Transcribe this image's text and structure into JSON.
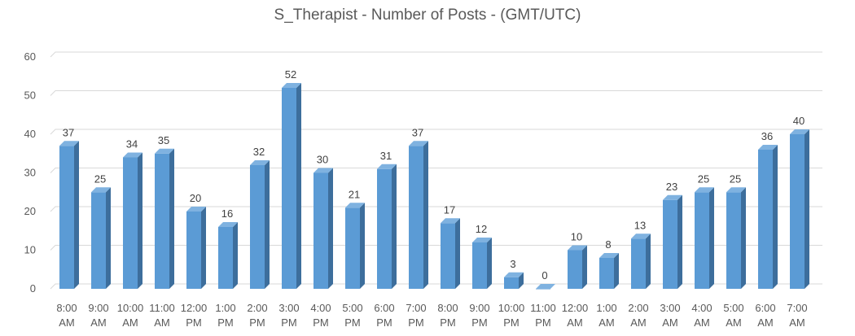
{
  "chart_data": {
    "type": "bar",
    "title": "S_Therapist - Number of Posts - (GMT/UTC)",
    "xlabel": "",
    "ylabel": "",
    "ylim": [
      0,
      60
    ],
    "yticks": [
      0,
      10,
      20,
      30,
      40,
      50,
      60
    ],
    "grid": true,
    "legend": "none",
    "bar_style": "3d-column",
    "colors": {
      "bar_front": "#5b9bd5",
      "bar_side": "#3d6e9c",
      "bar_top": "#7fb2e0",
      "grid": "#d9d9d9",
      "text": "#595959",
      "label": "#404040"
    },
    "categories": [
      [
        "8:00",
        "AM"
      ],
      [
        "9:00",
        "AM"
      ],
      [
        "10:00",
        "AM"
      ],
      [
        "11:00",
        "AM"
      ],
      [
        "12:00",
        "PM"
      ],
      [
        "1:00",
        "PM"
      ],
      [
        "2:00",
        "PM"
      ],
      [
        "3:00",
        "PM"
      ],
      [
        "4:00",
        "PM"
      ],
      [
        "5:00",
        "PM"
      ],
      [
        "6:00",
        "PM"
      ],
      [
        "7:00",
        "PM"
      ],
      [
        "8:00",
        "PM"
      ],
      [
        "9:00",
        "PM"
      ],
      [
        "10:00",
        "PM"
      ],
      [
        "11:00",
        "PM"
      ],
      [
        "12:00",
        "AM"
      ],
      [
        "1:00",
        "AM"
      ],
      [
        "2:00",
        "AM"
      ],
      [
        "3:00",
        "AM"
      ],
      [
        "4:00",
        "AM"
      ],
      [
        "5:00",
        "AM"
      ],
      [
        "6:00",
        "AM"
      ],
      [
        "7:00",
        "AM"
      ]
    ],
    "values": [
      37,
      25,
      34,
      35,
      20,
      16,
      32,
      52,
      30,
      21,
      31,
      37,
      17,
      12,
      3,
      0,
      10,
      8,
      13,
      23,
      25,
      25,
      36,
      40
    ]
  }
}
